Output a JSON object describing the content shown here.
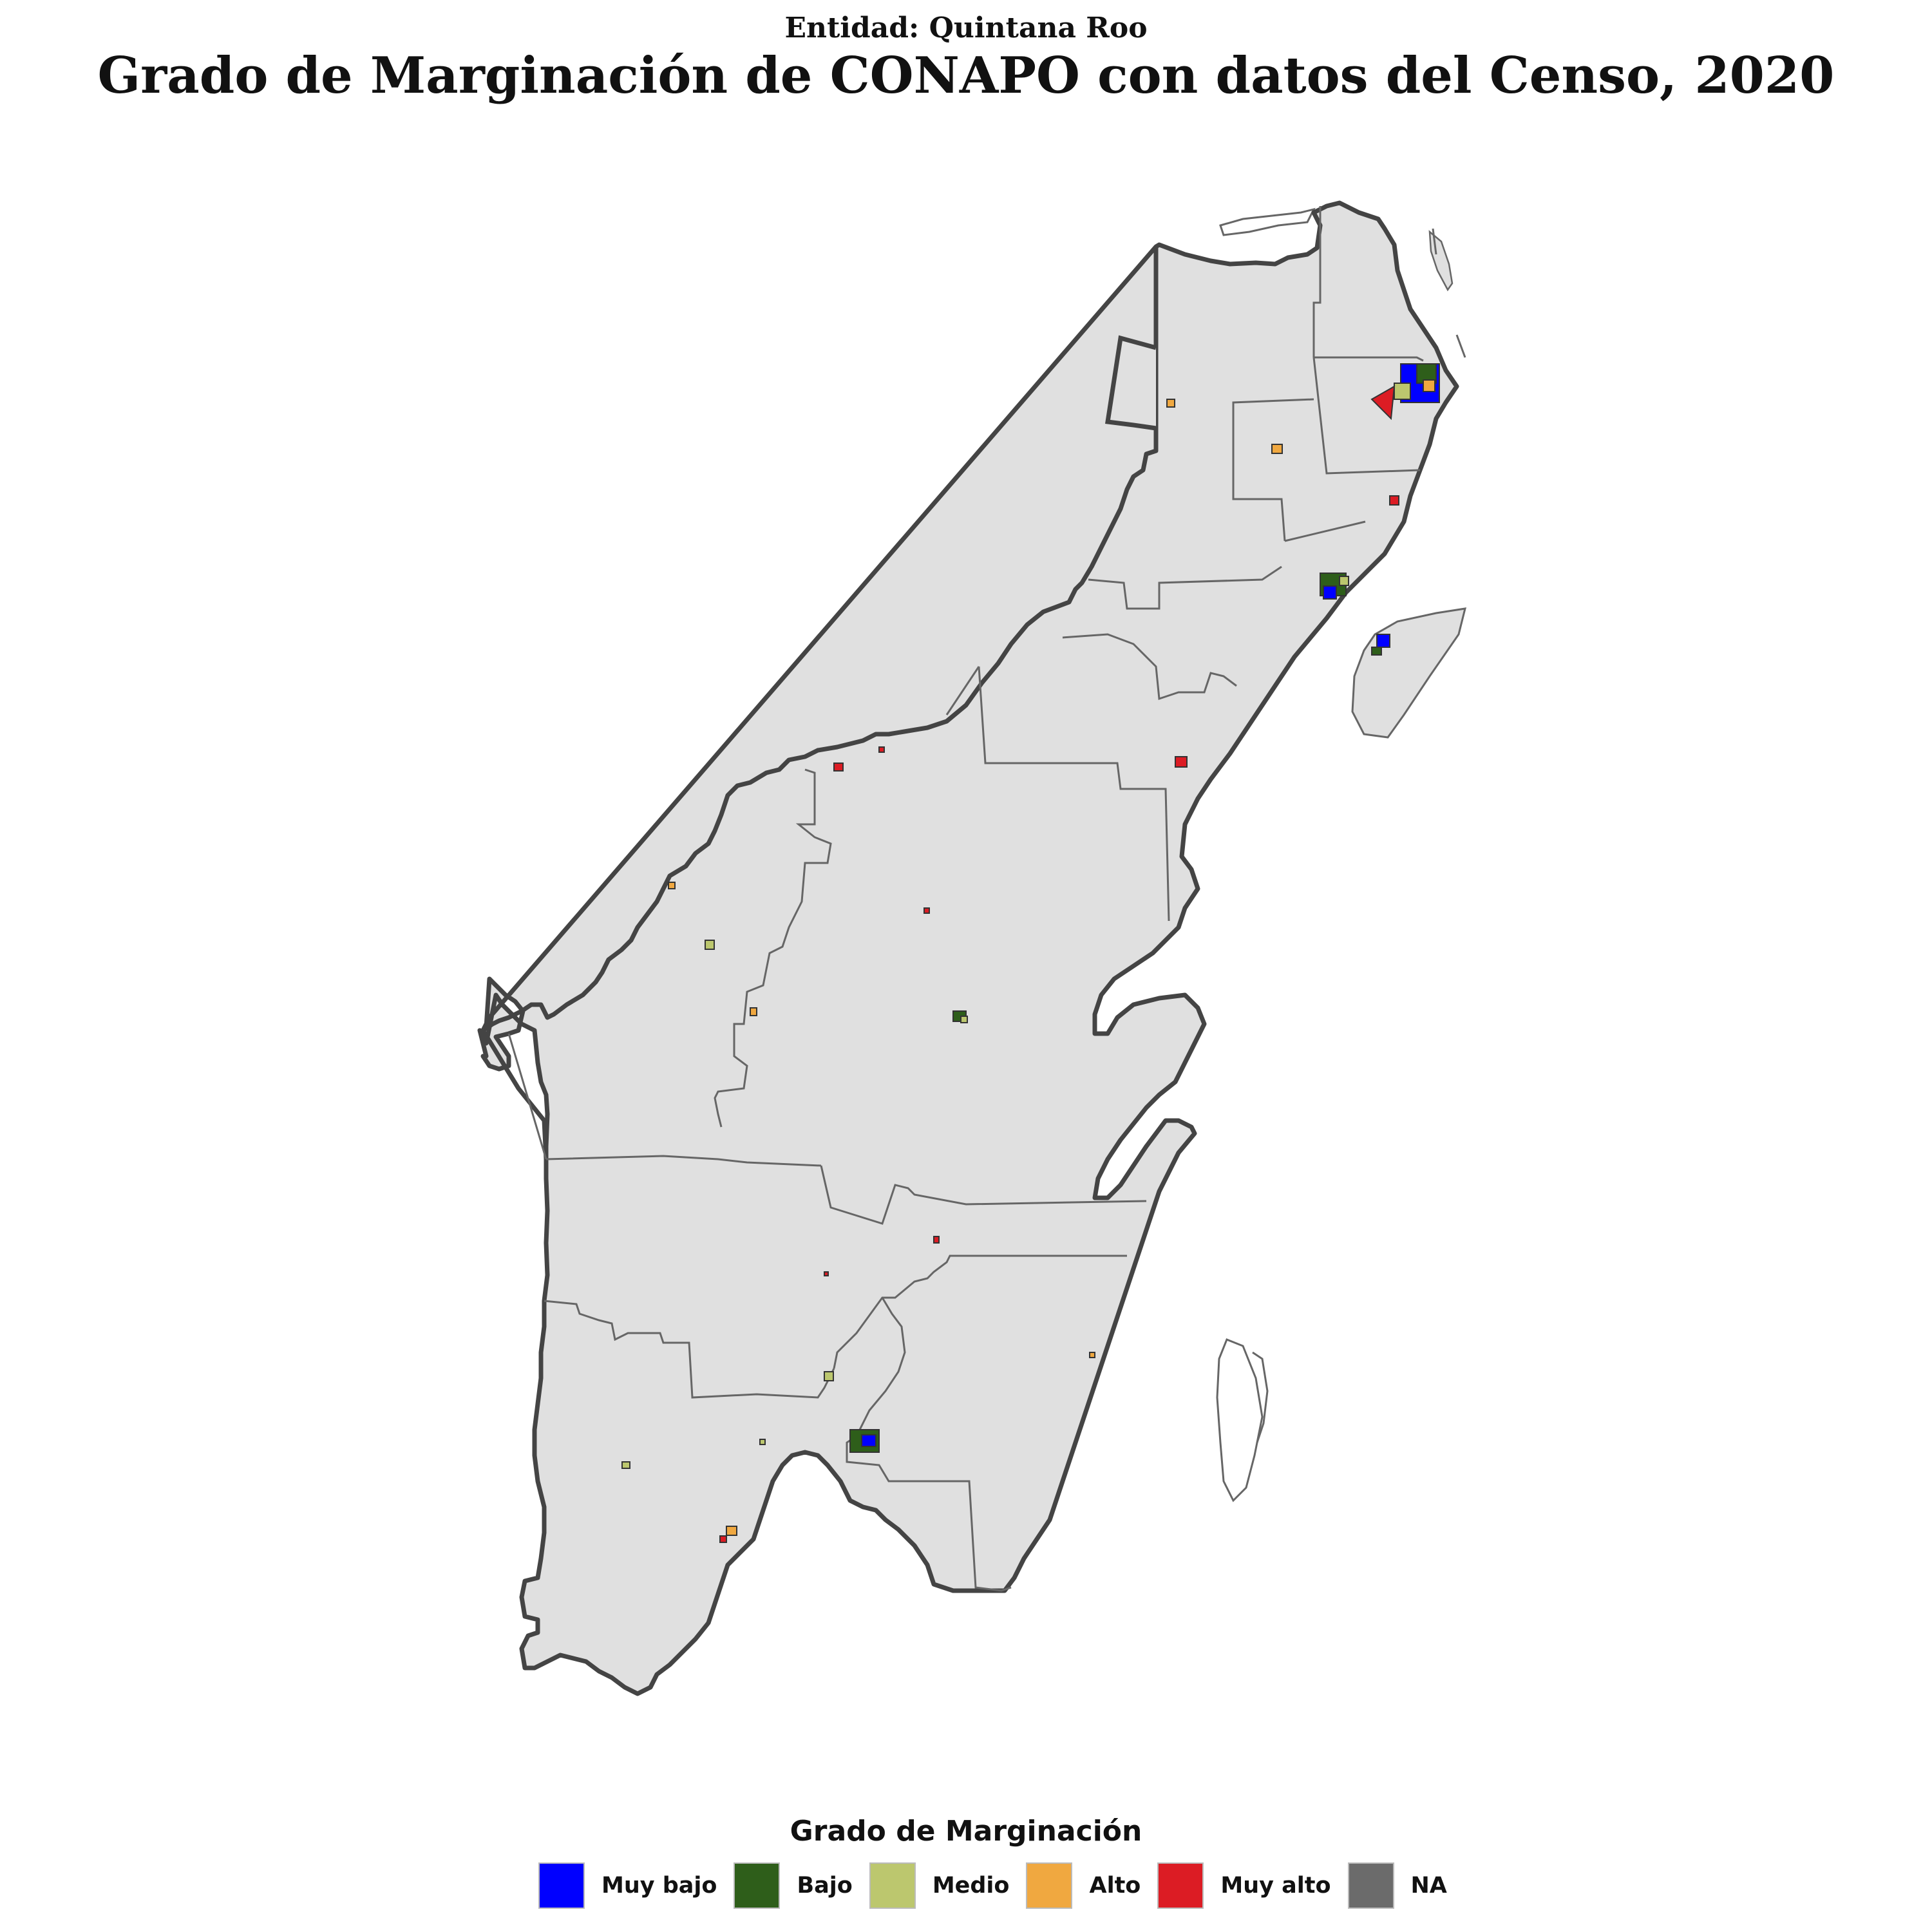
{
  "header": {
    "subtitle": "Entidad: Quintana Roo",
    "title": "Grado de Marginación de CONAPO con datos del Censo, 2020"
  },
  "colors": {
    "land": "#e0e0e0",
    "boundary": "#555555",
    "outline": "#444444"
  },
  "legend": {
    "title": "Grado de Marginación",
    "items": [
      {
        "label": "Muy bajo",
        "color": "#0000ff"
      },
      {
        "label": "Bajo",
        "color": "#2e5e1a"
      },
      {
        "label": "Medio",
        "color": "#bcc76e"
      },
      {
        "label": "Alto",
        "color": "#f0a840"
      },
      {
        "label": "Muy alto",
        "color": "#dc1c24"
      },
      {
        "label": "NA",
        "color": "#6b6b6b"
      }
    ]
  }
}
